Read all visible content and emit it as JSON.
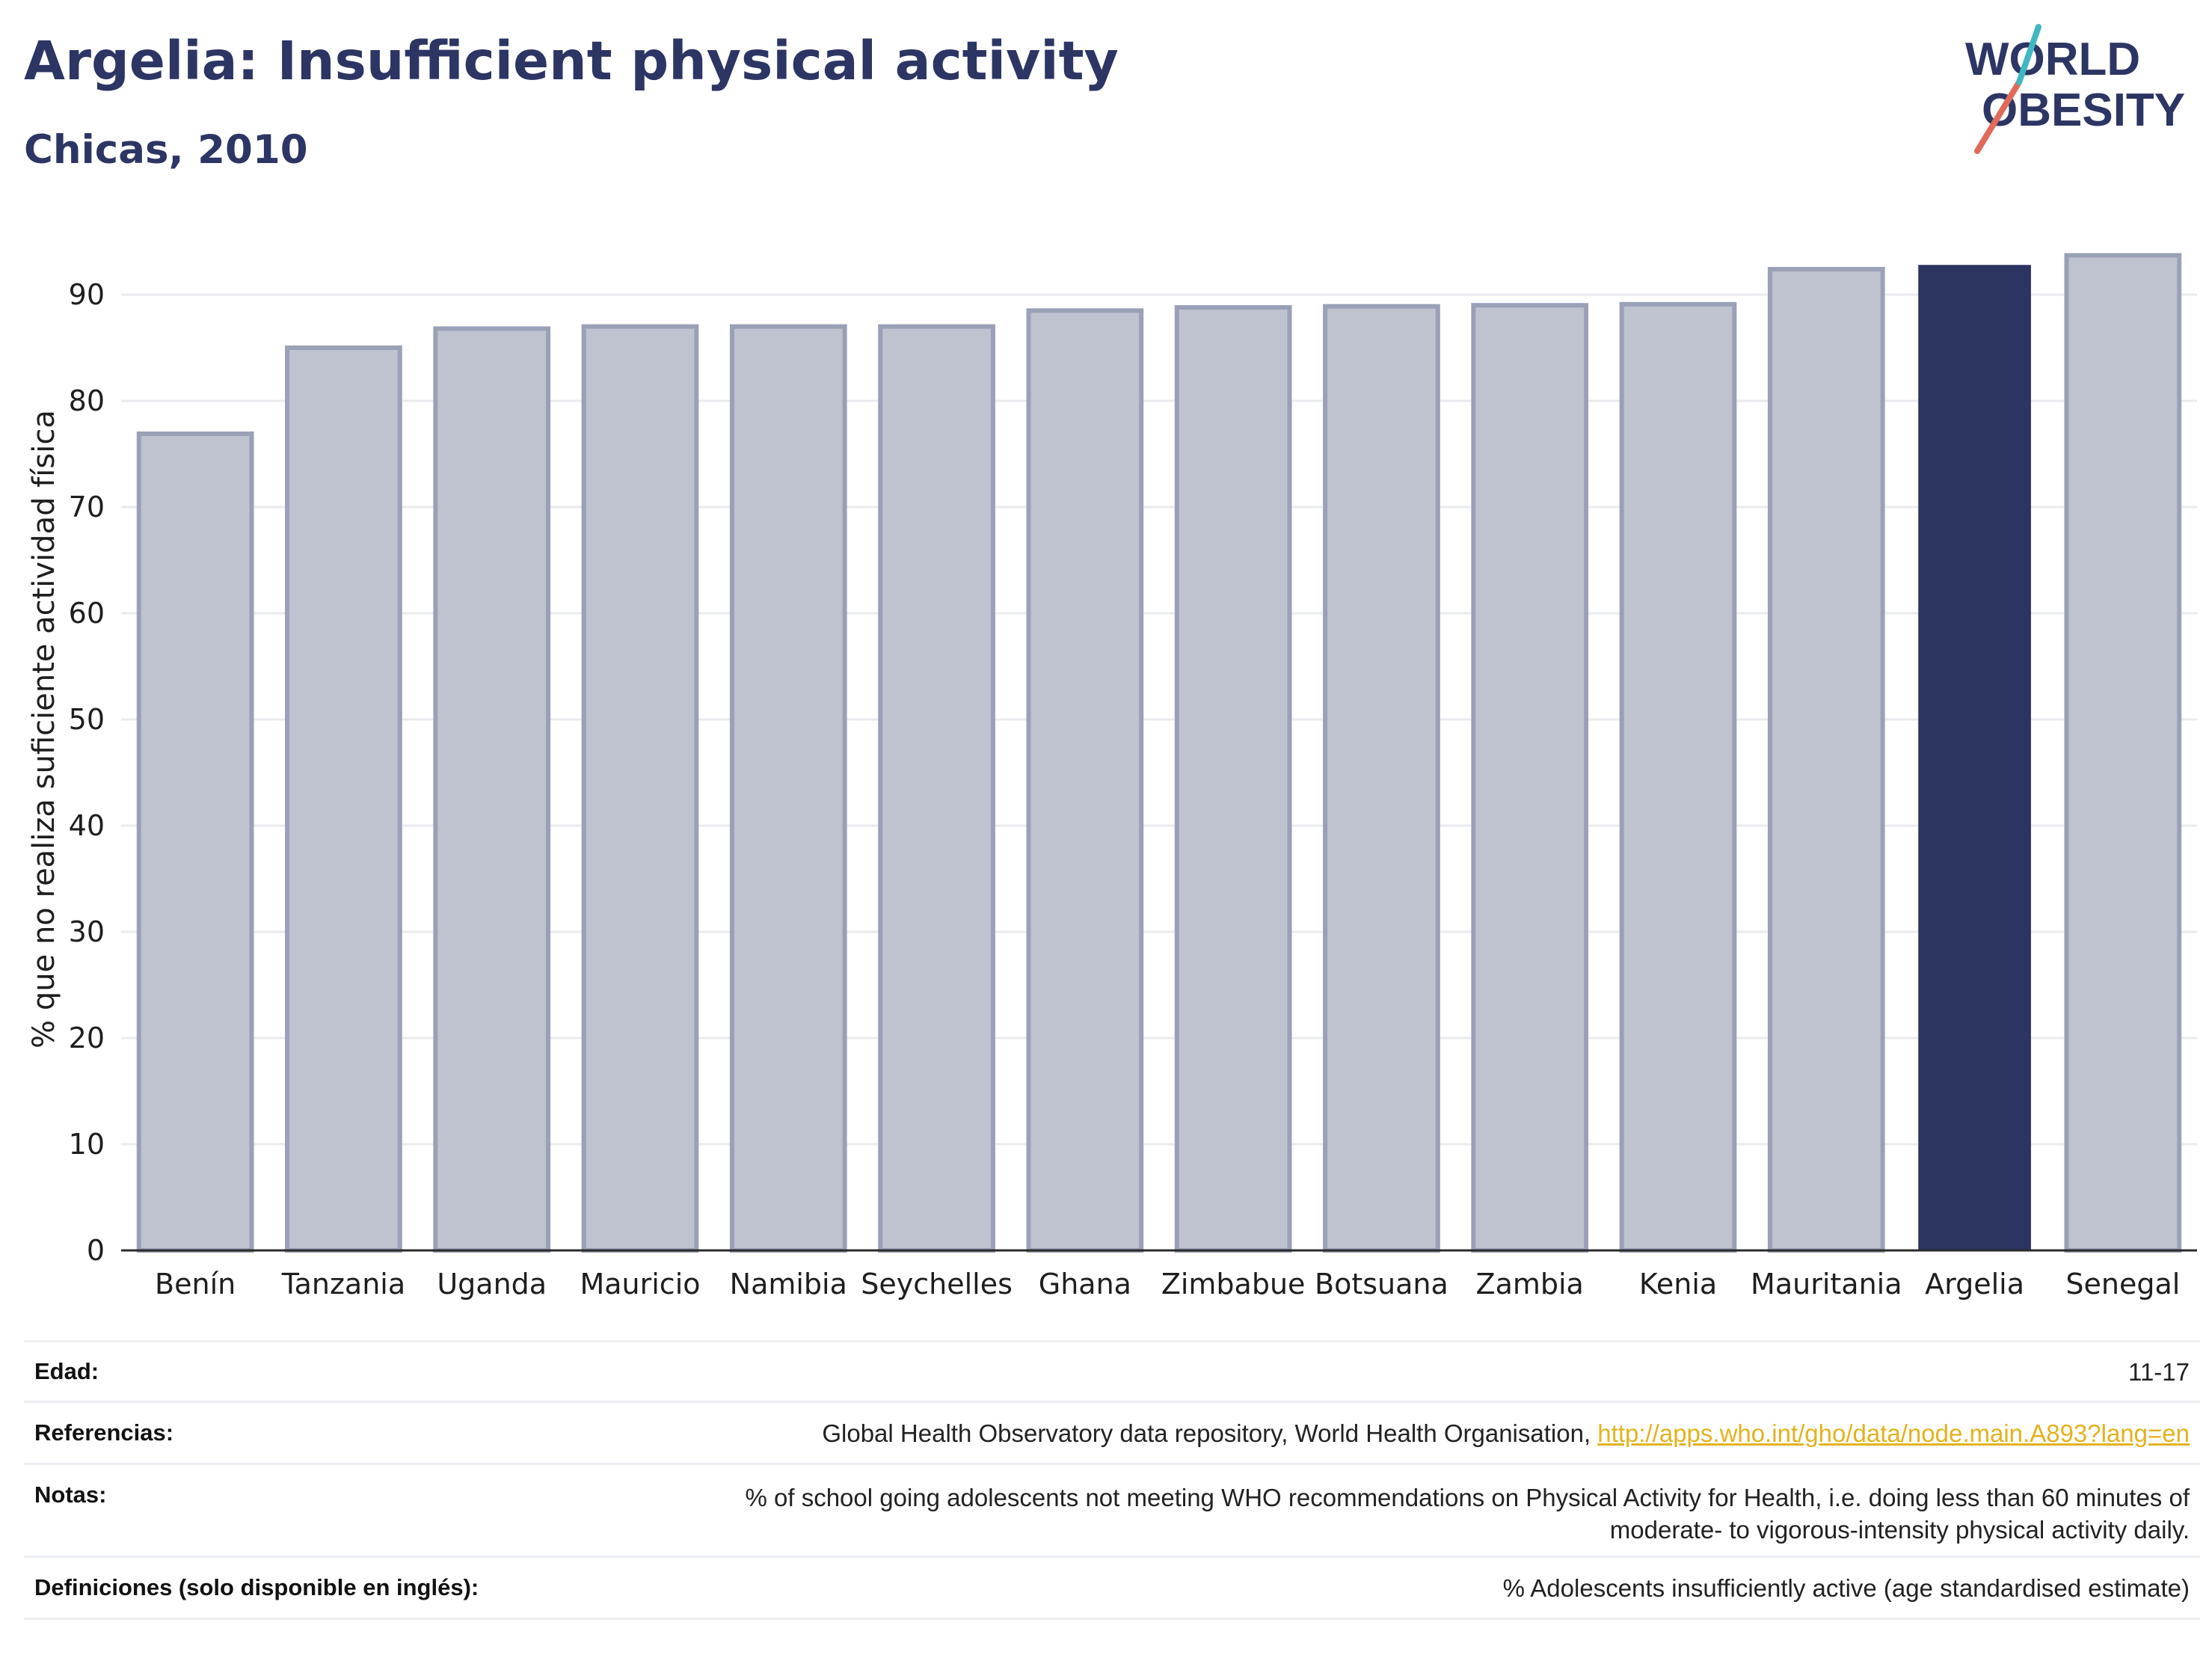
{
  "header": {
    "title": "Argelia: Insufficient physical activity",
    "subtitle": "Chicas, 2010"
  },
  "logo": {
    "line1": "WORLD",
    "line2": "OBESITY"
  },
  "chart_data": {
    "type": "bar",
    "title": "Argelia: Insufficient physical activity",
    "subtitle": "Chicas, 2010",
    "ylabel": "% que no realiza suficiente actividad física",
    "xlabel": "",
    "ylim": [
      0,
      95
    ],
    "yticks": [
      0,
      10,
      20,
      30,
      40,
      50,
      60,
      70,
      80,
      90
    ],
    "grid": true,
    "categories": [
      "Benín",
      "Tanzania",
      "Uganda",
      "Mauricio",
      "Namibia",
      "Seychelles",
      "Ghana",
      "Zimbabue",
      "Botsuana",
      "Zambia",
      "Kenia",
      "Mauritania",
      "Argelia",
      "Senegal"
    ],
    "values": [
      76.9,
      85.0,
      86.8,
      87.0,
      87.0,
      87.0,
      88.5,
      88.8,
      88.9,
      89.0,
      89.1,
      92.4,
      92.8,
      93.7
    ],
    "highlight": "Argelia",
    "colors": {
      "bar": "#bfc2cf",
      "bar_border": "#9aa0b6",
      "highlight": "#2c3561",
      "axis": "#2b2b2b",
      "grid": "#e9ebef",
      "text": "#1e1e1e"
    }
  },
  "info": {
    "rows": [
      {
        "label": "Edad:",
        "value": "11-17"
      },
      {
        "label": "Referencias:",
        "value": "Global Health Observatory data repository, World Health Organisation, ",
        "link": "http://apps.who.int/gho/data/node.main.A893?lang=en"
      },
      {
        "label": "Notas:",
        "value": "% of school going adolescents not meeting WHO recommendations on Physical Activity for Health, i.e. doing less than 60 minutes of",
        "value2": "moderate- to vigorous-intensity physical activity daily."
      },
      {
        "label": "Definiciones (solo disponible en inglés):",
        "value": "% Adolescents insufficiently active (age standardised estimate)"
      }
    ]
  }
}
